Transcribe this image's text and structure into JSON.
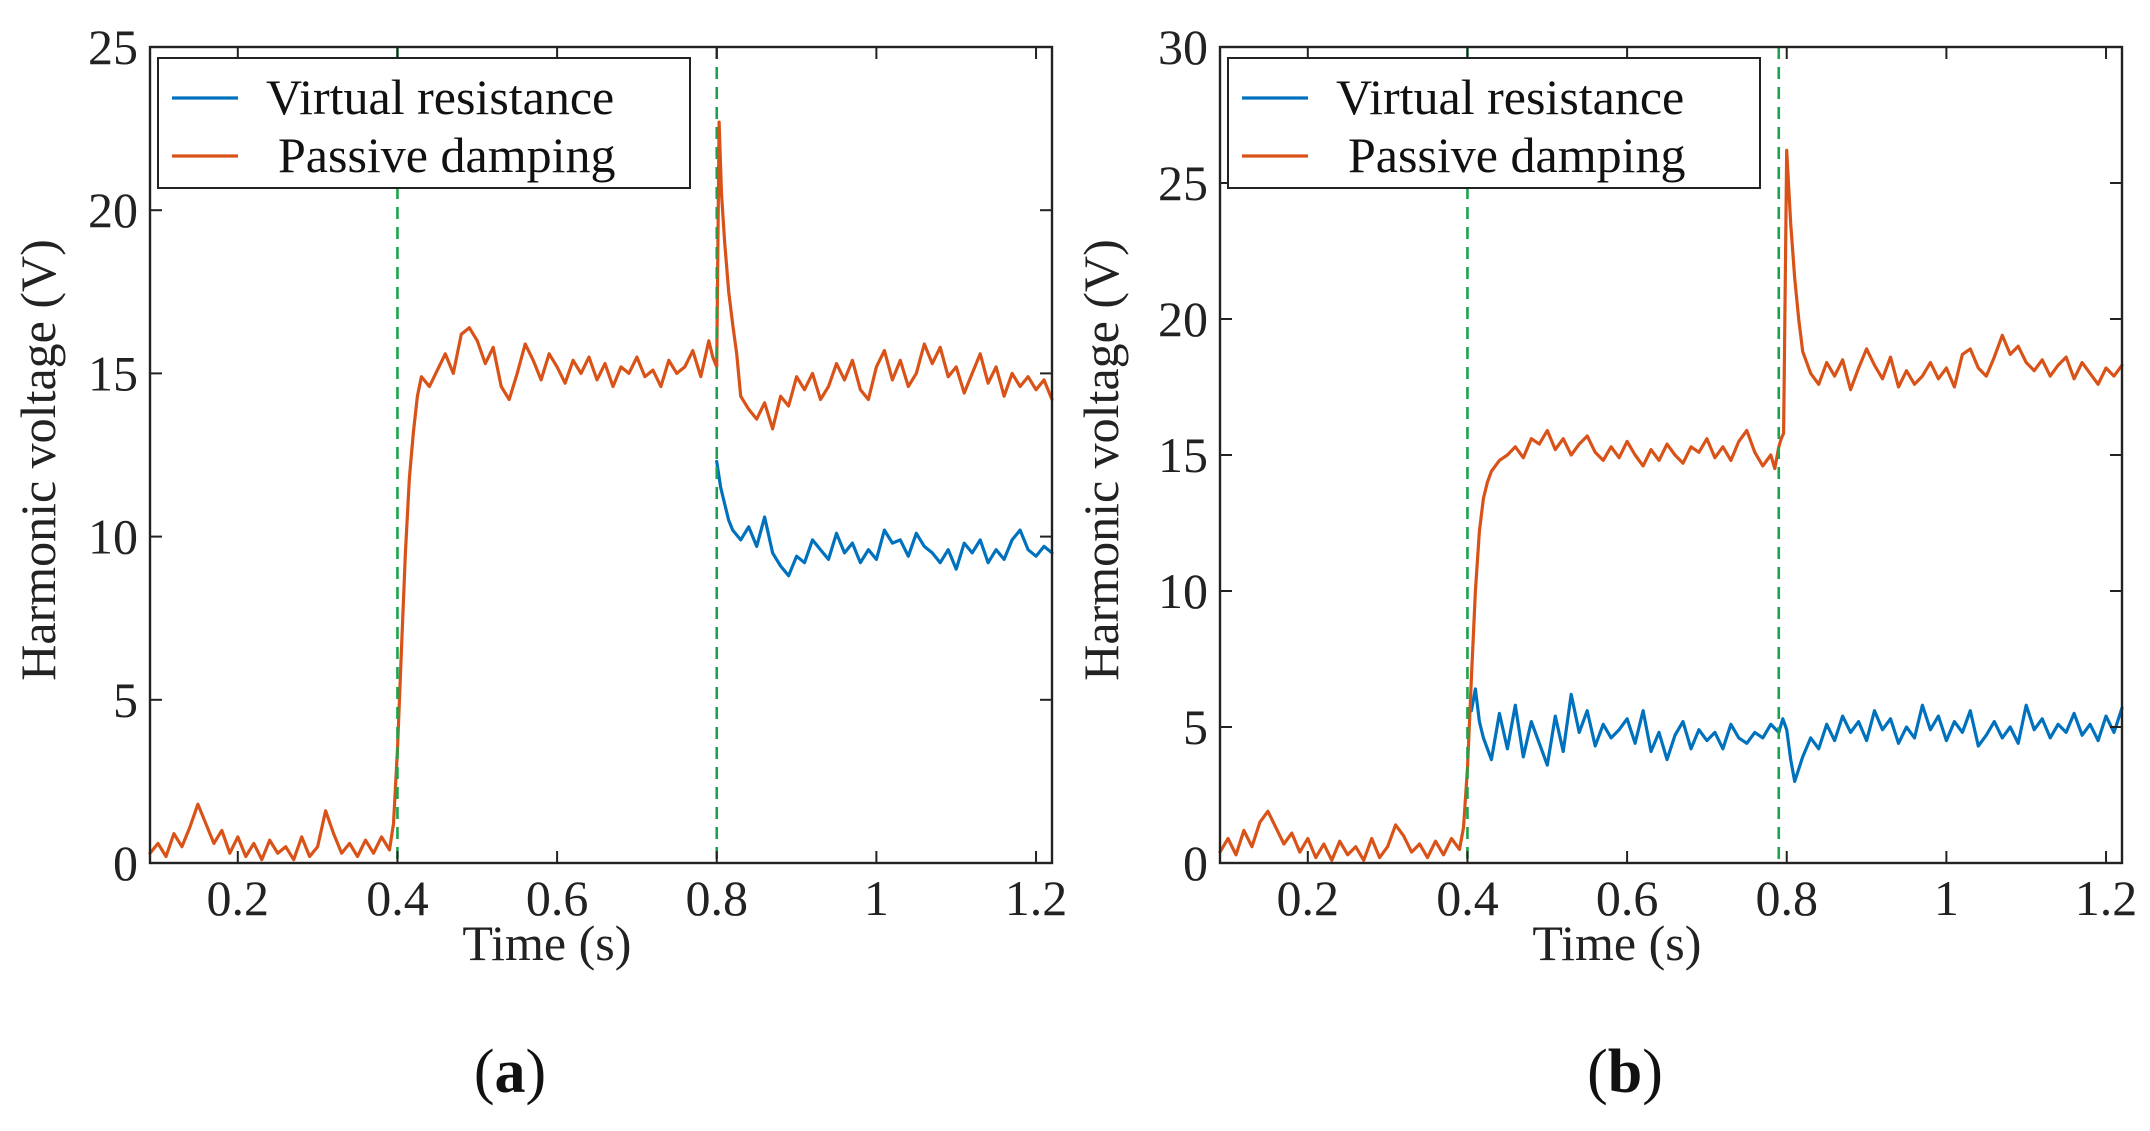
{
  "colors": {
    "virtual_resistance": "#0072BD",
    "passive_damping": "#D95319",
    "marker": "#1aa34a",
    "axis": "#222222"
  },
  "chart_data": [
    {
      "id": "a",
      "type": "line",
      "panel_label": "a",
      "xlabel": "Time (s)",
      "ylabel": "Harmonic voltage (V)",
      "xlim": [
        0.09,
        1.22
      ],
      "ylim": [
        0,
        25
      ],
      "xticks": [
        0.2,
        0.4,
        0.6,
        0.8,
        1,
        1.2
      ],
      "xtick_labels": [
        "0.2",
        "0.4",
        "0.6",
        "0.8",
        "1",
        "1.2"
      ],
      "yticks": [
        0,
        5,
        10,
        15,
        20,
        25
      ],
      "ytick_labels": [
        "0",
        "5",
        "10",
        "15",
        "20",
        "25"
      ],
      "markers_x": [
        0.4,
        0.8
      ],
      "legend": [
        "Virtual resistance",
        "Passive damping"
      ],
      "series": [
        {
          "name": "Virtual resistance",
          "color_key": "virtual_resistance",
          "x": [
            0.8,
            0.805,
            0.81,
            0.815,
            0.82,
            0.83,
            0.84,
            0.85,
            0.86,
            0.87,
            0.88,
            0.89,
            0.9,
            0.91,
            0.92,
            0.93,
            0.94,
            0.95,
            0.96,
            0.97,
            0.98,
            0.99,
            1.0,
            1.01,
            1.02,
            1.03,
            1.04,
            1.05,
            1.06,
            1.07,
            1.08,
            1.09,
            1.1,
            1.11,
            1.12,
            1.13,
            1.14,
            1.15,
            1.16,
            1.17,
            1.18,
            1.19,
            1.2,
            1.21,
            1.22
          ],
          "y": [
            12.3,
            11.5,
            11.0,
            10.5,
            10.2,
            9.9,
            10.3,
            9.7,
            10.6,
            9.5,
            9.1,
            8.8,
            9.4,
            9.2,
            9.9,
            9.6,
            9.3,
            10.1,
            9.5,
            9.8,
            9.2,
            9.6,
            9.3,
            10.2,
            9.8,
            9.9,
            9.4,
            10.1,
            9.7,
            9.5,
            9.2,
            9.6,
            9.0,
            9.8,
            9.5,
            9.9,
            9.2,
            9.6,
            9.3,
            9.9,
            10.2,
            9.6,
            9.4,
            9.7,
            9.5
          ]
        },
        {
          "name": "Passive damping",
          "color_key": "passive_damping",
          "x": [
            0.09,
            0.1,
            0.11,
            0.12,
            0.13,
            0.14,
            0.15,
            0.16,
            0.17,
            0.18,
            0.19,
            0.2,
            0.21,
            0.22,
            0.23,
            0.24,
            0.25,
            0.26,
            0.27,
            0.28,
            0.29,
            0.3,
            0.31,
            0.32,
            0.33,
            0.34,
            0.35,
            0.36,
            0.37,
            0.38,
            0.39,
            0.395,
            0.4,
            0.405,
            0.41,
            0.415,
            0.42,
            0.425,
            0.43,
            0.44,
            0.45,
            0.46,
            0.47,
            0.48,
            0.49,
            0.5,
            0.51,
            0.52,
            0.53,
            0.54,
            0.55,
            0.56,
            0.57,
            0.58,
            0.59,
            0.6,
            0.61,
            0.62,
            0.63,
            0.64,
            0.65,
            0.66,
            0.67,
            0.68,
            0.69,
            0.7,
            0.71,
            0.72,
            0.73,
            0.74,
            0.75,
            0.76,
            0.77,
            0.78,
            0.79,
            0.795,
            0.8,
            0.803,
            0.806,
            0.81,
            0.815,
            0.82,
            0.825,
            0.83,
            0.84,
            0.85,
            0.86,
            0.87,
            0.88,
            0.89,
            0.9,
            0.91,
            0.92,
            0.93,
            0.94,
            0.95,
            0.96,
            0.97,
            0.98,
            0.99,
            1.0,
            1.01,
            1.02,
            1.03,
            1.04,
            1.05,
            1.06,
            1.07,
            1.08,
            1.09,
            1.1,
            1.11,
            1.12,
            1.13,
            1.14,
            1.15,
            1.16,
            1.17,
            1.18,
            1.19,
            1.2,
            1.21,
            1.22
          ],
          "y": [
            0.3,
            0.6,
            0.2,
            0.9,
            0.5,
            1.1,
            1.8,
            1.2,
            0.6,
            1.0,
            0.3,
            0.8,
            0.2,
            0.6,
            0.1,
            0.7,
            0.3,
            0.5,
            0.1,
            0.8,
            0.2,
            0.5,
            1.6,
            0.9,
            0.3,
            0.6,
            0.2,
            0.7,
            0.3,
            0.8,
            0.4,
            1.2,
            3.5,
            6.5,
            9.5,
            11.8,
            13.2,
            14.3,
            14.9,
            14.6,
            15.1,
            15.6,
            15.0,
            16.2,
            16.4,
            16.0,
            15.3,
            15.8,
            14.6,
            14.2,
            15.0,
            15.9,
            15.4,
            14.8,
            15.6,
            15.2,
            14.7,
            15.4,
            15.0,
            15.5,
            14.8,
            15.3,
            14.6,
            15.2,
            15.0,
            15.5,
            14.9,
            15.1,
            14.6,
            15.4,
            15.0,
            15.2,
            15.7,
            14.9,
            16.0,
            15.5,
            15.2,
            22.7,
            20.5,
            19.0,
            17.5,
            16.5,
            15.6,
            14.3,
            13.9,
            13.6,
            14.1,
            13.3,
            14.3,
            14.0,
            14.9,
            14.5,
            15.0,
            14.2,
            14.6,
            15.3,
            14.8,
            15.4,
            14.5,
            14.2,
            15.2,
            15.7,
            14.8,
            15.4,
            14.6,
            15.0,
            15.9,
            15.3,
            15.8,
            14.9,
            15.2,
            14.4,
            15.0,
            15.6,
            14.7,
            15.2,
            14.3,
            15.0,
            14.6,
            14.9,
            14.5,
            14.8,
            14.2
          ]
        }
      ]
    },
    {
      "id": "b",
      "type": "line",
      "panel_label": "b",
      "xlabel": "Time (s)",
      "ylabel": "Harmonic voltage (V)",
      "xlim": [
        0.09,
        1.22
      ],
      "ylim": [
        0,
        30
      ],
      "xticks": [
        0.2,
        0.4,
        0.6,
        0.8,
        1,
        1.2
      ],
      "xtick_labels": [
        "0.2",
        "0.4",
        "0.6",
        "0.8",
        "1",
        "1.2"
      ],
      "yticks": [
        0,
        5,
        10,
        15,
        20,
        25,
        30
      ],
      "ytick_labels": [
        "0",
        "5",
        "10",
        "15",
        "20",
        "25",
        "30"
      ],
      "markers_x": [
        0.4,
        0.79
      ],
      "legend": [
        "Virtual resistance",
        "Passive damping"
      ],
      "series": [
        {
          "name": "Virtual resistance",
          "color_key": "virtual_resistance",
          "x": [
            0.405,
            0.41,
            0.415,
            0.42,
            0.43,
            0.44,
            0.45,
            0.46,
            0.47,
            0.48,
            0.49,
            0.5,
            0.51,
            0.52,
            0.53,
            0.54,
            0.55,
            0.56,
            0.57,
            0.58,
            0.59,
            0.6,
            0.61,
            0.62,
            0.63,
            0.64,
            0.65,
            0.66,
            0.67,
            0.68,
            0.69,
            0.7,
            0.71,
            0.72,
            0.73,
            0.74,
            0.75,
            0.76,
            0.77,
            0.78,
            0.79,
            0.795,
            0.8,
            0.805,
            0.81,
            0.82,
            0.83,
            0.84,
            0.85,
            0.86,
            0.87,
            0.88,
            0.89,
            0.9,
            0.91,
            0.92,
            0.93,
            0.94,
            0.95,
            0.96,
            0.97,
            0.98,
            0.99,
            1.0,
            1.01,
            1.02,
            1.03,
            1.04,
            1.05,
            1.06,
            1.07,
            1.08,
            1.09,
            1.1,
            1.11,
            1.12,
            1.13,
            1.14,
            1.15,
            1.16,
            1.17,
            1.18,
            1.19,
            1.2,
            1.21,
            1.22
          ],
          "y": [
            5.6,
            6.4,
            5.2,
            4.6,
            3.8,
            5.5,
            4.2,
            5.8,
            3.9,
            5.2,
            4.4,
            3.6,
            5.4,
            4.1,
            6.2,
            4.8,
            5.6,
            4.3,
            5.1,
            4.6,
            4.9,
            5.3,
            4.4,
            5.6,
            4.1,
            4.8,
            3.8,
            4.7,
            5.2,
            4.2,
            4.9,
            4.5,
            4.8,
            4.2,
            5.1,
            4.6,
            4.4,
            4.8,
            4.6,
            5.1,
            4.8,
            5.3,
            4.9,
            3.8,
            3.0,
            3.9,
            4.6,
            4.2,
            5.1,
            4.5,
            5.4,
            4.8,
            5.2,
            4.5,
            5.6,
            4.9,
            5.3,
            4.4,
            5.0,
            4.6,
            5.8,
            4.9,
            5.4,
            4.5,
            5.2,
            4.8,
            5.6,
            4.3,
            4.7,
            5.2,
            4.6,
            5.0,
            4.4,
            5.8,
            4.9,
            5.3,
            4.6,
            5.1,
            4.8,
            5.5,
            4.7,
            5.1,
            4.5,
            5.4,
            4.8,
            5.7
          ]
        },
        {
          "name": "Passive damping",
          "color_key": "passive_damping",
          "x": [
            0.09,
            0.1,
            0.11,
            0.12,
            0.13,
            0.14,
            0.15,
            0.16,
            0.17,
            0.18,
            0.19,
            0.2,
            0.21,
            0.22,
            0.23,
            0.24,
            0.25,
            0.26,
            0.27,
            0.28,
            0.29,
            0.3,
            0.31,
            0.32,
            0.33,
            0.34,
            0.35,
            0.36,
            0.37,
            0.38,
            0.39,
            0.395,
            0.4,
            0.405,
            0.41,
            0.415,
            0.42,
            0.425,
            0.43,
            0.44,
            0.45,
            0.46,
            0.47,
            0.48,
            0.49,
            0.5,
            0.51,
            0.52,
            0.53,
            0.54,
            0.55,
            0.56,
            0.57,
            0.58,
            0.59,
            0.6,
            0.61,
            0.62,
            0.63,
            0.64,
            0.65,
            0.66,
            0.67,
            0.68,
            0.69,
            0.7,
            0.71,
            0.72,
            0.73,
            0.74,
            0.75,
            0.76,
            0.77,
            0.78,
            0.785,
            0.79,
            0.793,
            0.796,
            0.8,
            0.805,
            0.81,
            0.815,
            0.82,
            0.83,
            0.84,
            0.85,
            0.86,
            0.87,
            0.88,
            0.89,
            0.9,
            0.91,
            0.92,
            0.93,
            0.94,
            0.95,
            0.96,
            0.97,
            0.98,
            0.99,
            1.0,
            1.01,
            1.02,
            1.03,
            1.04,
            1.05,
            1.06,
            1.07,
            1.08,
            1.09,
            1.1,
            1.11,
            1.12,
            1.13,
            1.14,
            1.15,
            1.16,
            1.17,
            1.18,
            1.19,
            1.2,
            1.21,
            1.22
          ],
          "y": [
            0.4,
            0.9,
            0.3,
            1.2,
            0.6,
            1.5,
            1.9,
            1.3,
            0.7,
            1.1,
            0.4,
            0.9,
            0.2,
            0.7,
            0.1,
            0.8,
            0.3,
            0.6,
            0.1,
            0.9,
            0.2,
            0.6,
            1.4,
            1.0,
            0.4,
            0.7,
            0.2,
            0.8,
            0.3,
            0.9,
            0.5,
            1.3,
            3.5,
            6.8,
            10.0,
            12.2,
            13.4,
            14.0,
            14.4,
            14.8,
            15.0,
            15.3,
            14.9,
            15.6,
            15.4,
            15.9,
            15.2,
            15.6,
            15.0,
            15.4,
            15.7,
            15.1,
            14.8,
            15.3,
            14.9,
            15.5,
            15.0,
            14.6,
            15.2,
            14.8,
            15.4,
            15.0,
            14.7,
            15.3,
            15.1,
            15.6,
            14.9,
            15.3,
            14.8,
            15.5,
            15.9,
            15.1,
            14.6,
            15.0,
            14.5,
            15.3,
            15.6,
            15.8,
            26.2,
            23.5,
            21.5,
            20.0,
            18.8,
            18.0,
            17.6,
            18.4,
            17.9,
            18.5,
            17.4,
            18.2,
            18.9,
            18.3,
            17.8,
            18.6,
            17.5,
            18.1,
            17.6,
            17.9,
            18.4,
            17.8,
            18.2,
            17.5,
            18.7,
            18.9,
            18.2,
            17.9,
            18.6,
            19.4,
            18.7,
            19.0,
            18.4,
            18.1,
            18.5,
            17.9,
            18.3,
            18.6,
            17.8,
            18.4,
            18.0,
            17.6,
            18.2,
            17.9,
            18.3
          ]
        }
      ]
    }
  ]
}
